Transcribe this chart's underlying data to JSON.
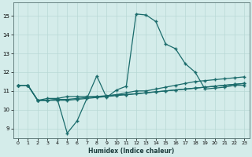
{
  "xlabel": "Humidex (Indice chaleur)",
  "xlim": [
    -0.5,
    23.5
  ],
  "ylim": [
    8.5,
    15.7
  ],
  "xticks": [
    0,
    1,
    2,
    3,
    4,
    5,
    6,
    7,
    8,
    9,
    10,
    11,
    12,
    13,
    14,
    15,
    16,
    17,
    18,
    19,
    20,
    21,
    22,
    23
  ],
  "yticks": [
    9,
    10,
    11,
    12,
    13,
    14,
    15
  ],
  "bg_color": "#d4ecea",
  "line_color": "#1a6b6b",
  "grid_color": "#b8d8d5",
  "lines": [
    [
      11.3,
      11.3,
      10.5,
      10.6,
      10.6,
      10.7,
      10.7,
      10.7,
      10.7,
      10.7,
      10.8,
      10.8,
      10.85,
      10.9,
      10.95,
      11.0,
      11.05,
      11.1,
      11.15,
      11.2,
      11.25,
      11.3,
      11.35,
      11.4
    ],
    [
      11.3,
      11.3,
      10.5,
      10.5,
      10.55,
      8.75,
      9.4,
      10.6,
      11.8,
      10.65,
      11.05,
      11.25,
      15.1,
      15.05,
      14.7,
      13.5,
      13.25,
      12.45,
      12.0,
      11.1,
      11.15,
      11.2,
      11.3,
      11.3
    ],
    [
      11.3,
      11.3,
      10.5,
      10.5,
      10.55,
      10.55,
      10.6,
      10.65,
      10.7,
      10.75,
      10.8,
      10.9,
      11.0,
      11.0,
      11.1,
      11.2,
      11.3,
      11.4,
      11.5,
      11.55,
      11.6,
      11.65,
      11.7,
      11.75
    ],
    [
      11.3,
      11.3,
      10.5,
      10.5,
      10.5,
      10.5,
      10.55,
      10.6,
      10.65,
      10.7,
      10.75,
      10.8,
      10.85,
      10.9,
      10.95,
      11.0,
      11.05,
      11.1,
      11.15,
      11.2,
      11.25,
      11.3,
      11.35,
      11.4
    ]
  ]
}
